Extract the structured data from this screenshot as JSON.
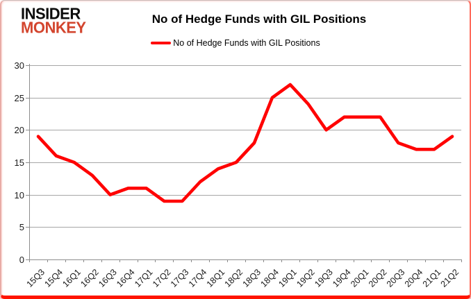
{
  "header": {
    "logo_line1": "INSIDER",
    "logo_line2": "MONKEY",
    "title": "No of Hedge Funds with GIL Positions"
  },
  "legend": {
    "label": "No of Hedge Funds with GIL Positions"
  },
  "colors": {
    "line": "#ff0000",
    "logo_black": "#0d0d0d",
    "logo_red": "#d3452e",
    "gridline": "#a6a6a6",
    "axis": "#8c8c8c",
    "tick_text": "#1a1a1a",
    "frame_glow": "#ff1400"
  },
  "chart_data": {
    "type": "line",
    "title": "No of Hedge Funds with GIL Positions",
    "categories": [
      "15Q3",
      "15Q4",
      "16Q1",
      "16Q2",
      "16Q3",
      "16Q4",
      "17Q1",
      "17Q2",
      "17Q3",
      "17Q4",
      "18Q1",
      "18Q2",
      "18Q3",
      "18Q4",
      "19Q1",
      "19Q2",
      "19Q3",
      "19Q4",
      "20Q1",
      "20Q2",
      "20Q3",
      "20Q4",
      "21Q1",
      "21Q2"
    ],
    "series": [
      {
        "name": "No of Hedge Funds with GIL Positions",
        "values": [
          19,
          16,
          15,
          13,
          10,
          11,
          11,
          9,
          9,
          12,
          14,
          15,
          18,
          25,
          27,
          24,
          20,
          22,
          22,
          22,
          18,
          17,
          17,
          19
        ]
      }
    ],
    "xlabel": "",
    "ylabel": "",
    "ylim": [
      0,
      30
    ],
    "ytick_interval": 5,
    "yticks": [
      0,
      5,
      10,
      15,
      20,
      25,
      30
    ],
    "grid": true,
    "legend_position": "top"
  }
}
